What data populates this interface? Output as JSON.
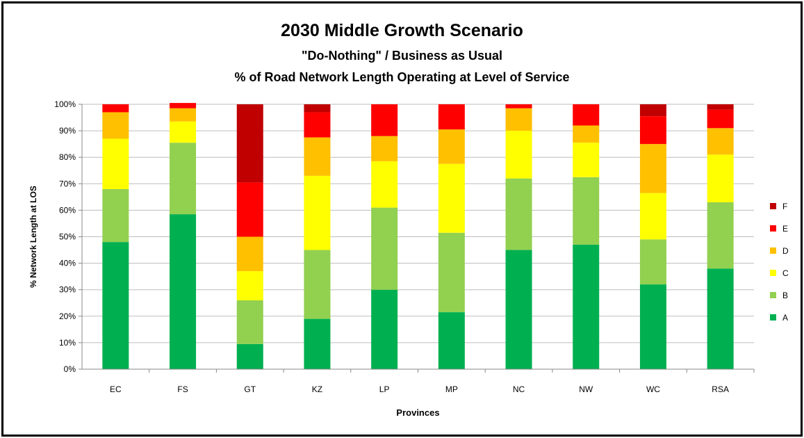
{
  "chart_data": {
    "type": "bar",
    "stacked": true,
    "title": "2030 Middle Growth Scenario",
    "subtitle": "\"Do-Nothing\" / Business as Usual",
    "subtitle2": "% of Road Network Length Operating at Level of Service",
    "xlabel": "Provinces",
    "ylabel": "% Network Length at LOS",
    "ylim": [
      0,
      100
    ],
    "y_ticks": [
      "0%",
      "10%",
      "20%",
      "30%",
      "40%",
      "50%",
      "60%",
      "70%",
      "80%",
      "90%",
      "100%"
    ],
    "grid": true,
    "legend_position": "right",
    "categories": [
      "EC",
      "FS",
      "GT",
      "KZ",
      "LP",
      "MP",
      "NC",
      "NW",
      "WC",
      "RSA"
    ],
    "series": [
      {
        "name": "A",
        "color": "#00b050",
        "values": [
          48,
          58.5,
          9.5,
          19,
          30,
          21.5,
          45,
          47,
          32,
          38
        ]
      },
      {
        "name": "B",
        "color": "#92d050",
        "values": [
          20,
          27,
          16.5,
          26,
          31,
          30,
          27,
          25.5,
          17,
          25
        ]
      },
      {
        "name": "C",
        "color": "#ffff00",
        "values": [
          19,
          8,
          11,
          28,
          17.5,
          26,
          18,
          13,
          17.5,
          18
        ]
      },
      {
        "name": "D",
        "color": "#ffc000",
        "values": [
          10,
          5,
          13,
          14.5,
          9.5,
          13,
          8.5,
          6.5,
          18.5,
          10
        ]
      },
      {
        "name": "E",
        "color": "#ff0000",
        "values": [
          3,
          2,
          20.5,
          9.5,
          12,
          9.5,
          1.5,
          8,
          10.5,
          7
        ]
      },
      {
        "name": "F",
        "color": "#c00000",
        "values": [
          0,
          0,
          29.5,
          3,
          0,
          0,
          0,
          0,
          4.5,
          2
        ]
      }
    ]
  }
}
